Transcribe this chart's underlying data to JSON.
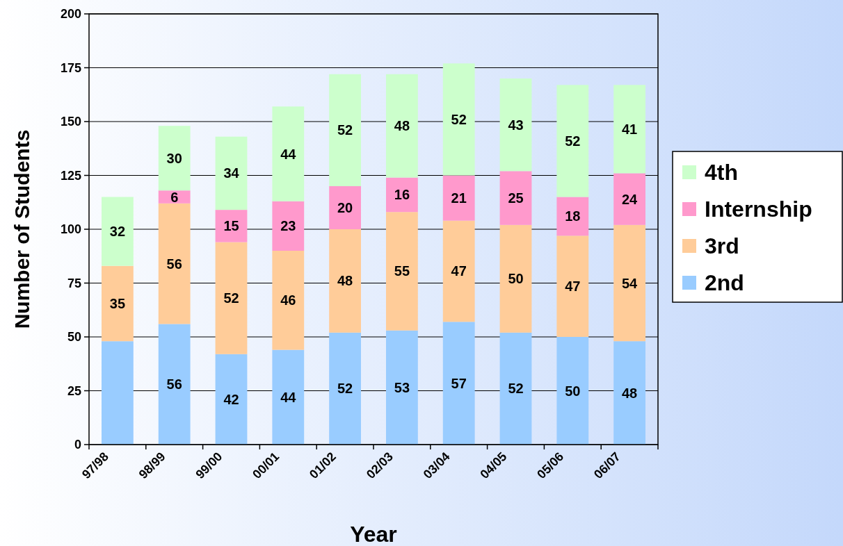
{
  "chart_data": {
    "type": "bar",
    "stacked": true,
    "xlabel": "Year",
    "ylabel": "Number of Students",
    "categories": [
      "97/98",
      "98/99",
      "99/00",
      "00/01",
      "01/02",
      "02/03",
      "03/04",
      "04/05",
      "05/06",
      "06/07"
    ],
    "ylim": [
      0,
      200
    ],
    "yticks": [
      0,
      25,
      50,
      75,
      100,
      125,
      150,
      175,
      200
    ],
    "grid": "y",
    "legend": "right",
    "series": [
      {
        "name": "2nd",
        "color": "#99ccff",
        "values": [
          48,
          56,
          42,
          44,
          52,
          53,
          57,
          52,
          50,
          48
        ],
        "value_labels": [
          null,
          "56",
          "42",
          "44",
          "52",
          "53",
          "57",
          "52",
          "50",
          "48"
        ]
      },
      {
        "name": "3rd",
        "color": "#ffcc99",
        "values": [
          35,
          56,
          52,
          46,
          48,
          55,
          47,
          50,
          47,
          54
        ],
        "value_labels": [
          "35",
          "56",
          "52",
          "46",
          "48",
          "55",
          "47",
          "50",
          "47",
          "54"
        ]
      },
      {
        "name": "Internship",
        "color": "#ff99cc",
        "values": [
          null,
          6,
          15,
          23,
          20,
          16,
          21,
          25,
          18,
          24
        ],
        "value_labels": [
          null,
          "6",
          "15",
          "23",
          "20",
          "16",
          "21",
          "25",
          "18",
          "24"
        ]
      },
      {
        "name": "4th",
        "color": "#ccffcc",
        "values": [
          32,
          30,
          34,
          44,
          52,
          48,
          52,
          43,
          52,
          41
        ],
        "value_labels": [
          "32",
          "30",
          "34",
          "44",
          "52",
          "48",
          "52",
          "43",
          "52",
          "41"
        ]
      }
    ]
  }
}
